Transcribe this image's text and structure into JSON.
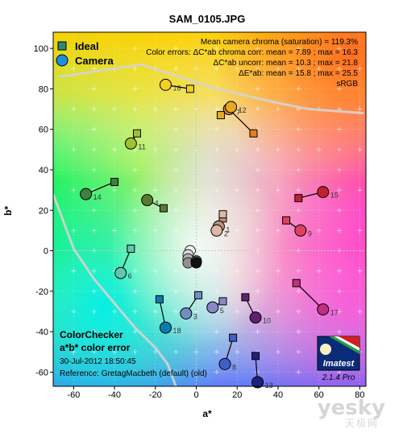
{
  "chart_data": {
    "type": "scatter",
    "title": "SAM_0105.JPG",
    "xlabel": "a*",
    "ylabel": "b*",
    "xlim": [
      -70,
      83
    ],
    "ylim": [
      -67,
      108
    ],
    "xticks": [
      -60,
      -40,
      -20,
      0,
      20,
      40,
      60,
      80
    ],
    "yticks": [
      -60,
      -40,
      -20,
      0,
      20,
      40,
      60,
      80,
      100
    ],
    "xticklabels": [
      "-60",
      "-40",
      "-20",
      "0",
      "20",
      "40",
      "60",
      "80"
    ],
    "yticklabels": [
      "-60",
      "-40",
      "-20",
      "0",
      "20",
      "40",
      "60",
      "80",
      "100"
    ],
    "legend": {
      "placement": "top-left",
      "items": [
        {
          "label": "Ideal",
          "marker": "square"
        },
        {
          "label": "Camera",
          "marker": "circle"
        }
      ]
    },
    "stats": {
      "line1": "Mean camera chroma (saturation) = 119.3%",
      "line2": "Color errors: ΔC*ab chroma corr:  mean = 7.89 ;  max = 16.3",
      "line3": "ΔC*ab uncorr:  mean = 10.3 ;  max = 21.8",
      "line4": "ΔE*ab:  mean = 15.8 ;  max = 25.5",
      "line5": "sRGB"
    },
    "info": {
      "line1": "ColorChecker",
      "line2": "a*b* color error",
      "line3": "30-Jul-2012 18:50:45",
      "line4": "Reference: GretagMacbeth (default) (old)"
    },
    "logo": {
      "name": "Imatest",
      "version": "2.1.4  Pro"
    },
    "patches": [
      {
        "id": "1",
        "ideal": [
          13,
          16
        ],
        "camera": [
          11,
          12
        ],
        "color": "#c09080"
      },
      {
        "id": "2",
        "ideal": [
          13,
          18
        ],
        "camera": [
          10,
          10
        ],
        "color": "#e0b8a8"
      },
      {
        "id": "3",
        "ideal": [
          1,
          -22
        ],
        "camera": [
          -5,
          -31
        ],
        "color": "#7090c0"
      },
      {
        "id": "4",
        "ideal": [
          -16,
          21
        ],
        "camera": [
          -24,
          25
        ],
        "color": "#5a7a30"
      },
      {
        "id": "5",
        "ideal": [
          13,
          -25
        ],
        "camera": [
          8,
          -28
        ],
        "color": "#8a88c8"
      },
      {
        "id": "6",
        "ideal": [
          -32,
          1
        ],
        "camera": [
          -37,
          -11
        ],
        "color": "#60c8b0"
      },
      {
        "id": "7",
        "ideal": [
          28,
          58
        ],
        "camera": [
          16,
          70
        ],
        "color": "#e08020"
      },
      {
        "id": "8",
        "ideal": [
          18,
          -43
        ],
        "camera": [
          14,
          -56
        ],
        "color": "#4060c8"
      },
      {
        "id": "9",
        "ideal": [
          44,
          15
        ],
        "camera": [
          51,
          10
        ],
        "color": "#e04060"
      },
      {
        "id": "10",
        "ideal": [
          24,
          -23
        ],
        "camera": [
          29,
          -33
        ],
        "color": "#602070"
      },
      {
        "id": "11",
        "ideal": [
          -29,
          58
        ],
        "camera": [
          -32,
          53
        ],
        "color": "#a0c030"
      },
      {
        "id": "12",
        "ideal": [
          12,
          67
        ],
        "camera": [
          17,
          71
        ],
        "color": "#e8a820"
      },
      {
        "id": "13",
        "ideal": [
          29,
          -52
        ],
        "camera": [
          30,
          -65
        ],
        "color": "#202080"
      },
      {
        "id": "14",
        "ideal": [
          -40,
          34
        ],
        "camera": [
          -54,
          28
        ],
        "color": "#408040"
      },
      {
        "id": "15",
        "ideal": [
          50,
          26
        ],
        "camera": [
          62,
          29
        ],
        "color": "#c02030"
      },
      {
        "id": "16",
        "ideal": [
          -3,
          80
        ],
        "camera": [
          -15,
          82
        ],
        "color": "#f0d020"
      },
      {
        "id": "17",
        "ideal": [
          49,
          -16
        ],
        "camera": [
          62,
          -29
        ],
        "color": "#c03080"
      },
      {
        "id": "18",
        "ideal": [
          -18,
          -24
        ],
        "camera": [
          -15,
          -38
        ],
        "color": "#0080b0"
      }
    ],
    "neutrals": [
      {
        "camera": [
          -3,
          0
        ],
        "color": "#f4f4f4"
      },
      {
        "camera": [
          -4,
          -2
        ],
        "color": "#d8d8d8"
      },
      {
        "camera": [
          -4,
          -4
        ],
        "color": "#b0b0b0"
      },
      {
        "camera": [
          -4,
          -6
        ],
        "color": "#909090"
      },
      {
        "camera": [
          0,
          -5
        ],
        "color": "#505050"
      },
      {
        "camera": [
          0,
          -6
        ],
        "color": "#111111"
      }
    ],
    "gamut_boundary": [
      [
        -70,
        28
      ],
      [
        -60,
        1
      ],
      [
        -50,
        -14
      ],
      [
        -30,
        -38
      ],
      [
        -20,
        -48
      ],
      [
        -14,
        -56
      ],
      [
        -10,
        -67
      ]
    ],
    "gamut_top": [
      [
        -67,
        86
      ],
      [
        -27,
        92
      ],
      [
        10,
        80
      ],
      [
        40,
        73
      ],
      [
        55,
        70
      ],
      [
        82,
        68
      ]
    ]
  },
  "watermark": {
    "text": "yesky",
    "subtext": "天极网"
  }
}
